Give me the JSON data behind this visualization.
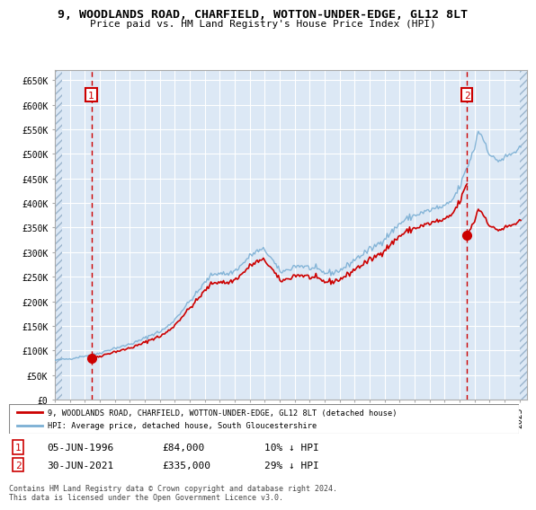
{
  "title": "9, WOODLANDS ROAD, CHARFIELD, WOTTON-UNDER-EDGE, GL12 8LT",
  "subtitle": "Price paid vs. HM Land Registry's House Price Index (HPI)",
  "ylim": [
    0,
    670000
  ],
  "yticks": [
    0,
    50000,
    100000,
    150000,
    200000,
    250000,
    300000,
    350000,
    400000,
    450000,
    500000,
    550000,
    600000,
    650000
  ],
  "ytick_labels": [
    "£0",
    "£50K",
    "£100K",
    "£150K",
    "£200K",
    "£250K",
    "£300K",
    "£350K",
    "£400K",
    "£450K",
    "£500K",
    "£550K",
    "£600K",
    "£650K"
  ],
  "hpi_color": "#7bafd4",
  "price_color": "#cc0000",
  "dashed_line_color": "#cc0000",
  "chart_bg_color": "#dce8f5",
  "hatch_color": "#b8cfe0",
  "sale1_date": 1996.43,
  "sale1_price": 84000,
  "sale2_date": 2021.5,
  "sale2_price": 335000,
  "legend_label1": "9, WOODLANDS ROAD, CHARFIELD, WOTTON-UNDER-EDGE, GL12 8LT (detached house)",
  "legend_label2": "HPI: Average price, detached house, South Gloucestershire",
  "table_row1": [
    "1",
    "05-JUN-1996",
    "£84,000",
    "10% ↓ HPI"
  ],
  "table_row2": [
    "2",
    "30-JUN-2021",
    "£335,000",
    "29% ↓ HPI"
  ],
  "footnote": "Contains HM Land Registry data © Crown copyright and database right 2024.\nThis data is licensed under the Open Government Licence v3.0.",
  "xlim_start": 1994.0,
  "xlim_end": 2025.5,
  "data_start": 1994.5,
  "data_end": 2025.0
}
